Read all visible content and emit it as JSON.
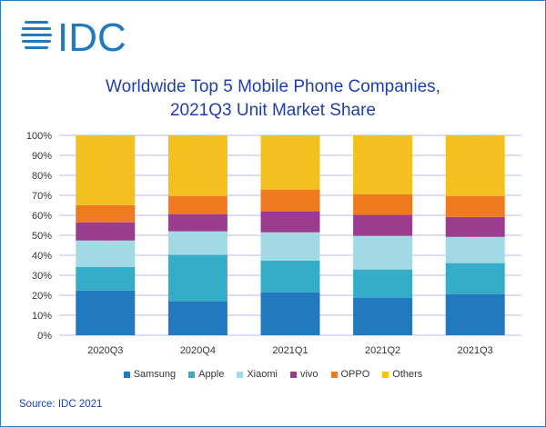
{
  "logo_text": "IDC",
  "chart_data": {
    "type": "bar",
    "stacked": true,
    "title": "Worldwide Top 5 Mobile Phone Companies, 2021Q3 Unit Market Share",
    "title_lines": [
      "Worldwide Top 5 Mobile Phone Companies,",
      "2021Q3 Unit Market Share"
    ],
    "categories": [
      "2020Q3",
      "2020Q4",
      "2021Q1",
      "2021Q2",
      "2021Q3"
    ],
    "yticks": [
      "0%",
      "10%",
      "20%",
      "30%",
      "40%",
      "50%",
      "60%",
      "70%",
      "80%",
      "90%",
      "100%"
    ],
    "ylim": [
      0,
      100
    ],
    "grid": true,
    "legend_position": "bottom",
    "series": [
      {
        "name": "Samsung",
        "color": "#2279bd",
        "values": [
          22.4,
          17.0,
          21.5,
          18.8,
          20.6
        ]
      },
      {
        "name": "Apple",
        "color": "#36adc8",
        "values": [
          11.8,
          23.2,
          15.9,
          14.1,
          15.5
        ]
      },
      {
        "name": "Xiaomi",
        "color": "#a1dae5",
        "values": [
          13.2,
          11.8,
          14.1,
          16.8,
          13.1
        ]
      },
      {
        "name": "vivo",
        "color": "#9c3c8e",
        "values": [
          9.1,
          8.6,
          10.5,
          10.5,
          10.0
        ]
      },
      {
        "name": "OPPO",
        "color": "#f07a20",
        "values": [
          8.6,
          9.1,
          10.9,
          10.4,
          10.5
        ]
      },
      {
        "name": "Others",
        "color": "#f3c020",
        "values": [
          34.9,
          30.3,
          27.1,
          29.4,
          30.3
        ]
      }
    ]
  },
  "source": "Source: IDC 2021"
}
